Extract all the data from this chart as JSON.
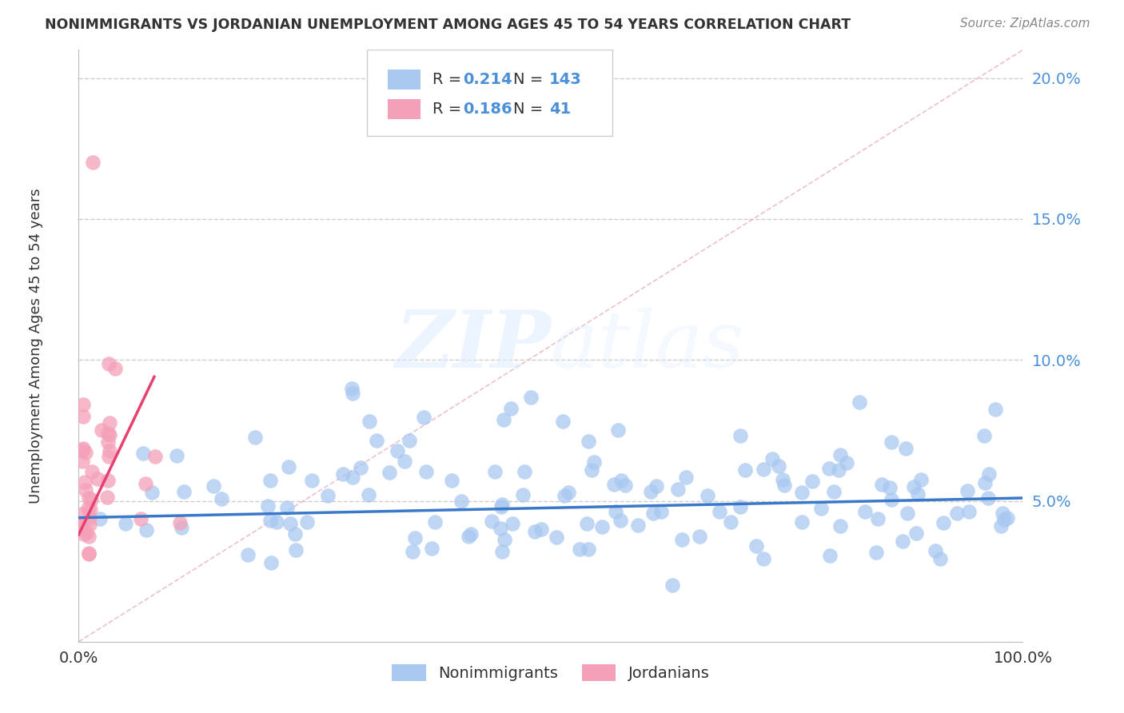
{
  "title": "NONIMMIGRANTS VS JORDANIAN UNEMPLOYMENT AMONG AGES 45 TO 54 YEARS CORRELATION CHART",
  "source": "Source: ZipAtlas.com",
  "ylabel": "Unemployment Among Ages 45 to 54 years",
  "xlim": [
    0,
    1
  ],
  "ylim": [
    0,
    0.21
  ],
  "ytick_vals": [
    0.0,
    0.05,
    0.1,
    0.15,
    0.2
  ],
  "ytick_labels": [
    "",
    "5.0%",
    "10.0%",
    "15.0%",
    "20.0%"
  ],
  "grid_color": "#cccccc",
  "background_color": "#ffffff",
  "watermark_zip": "ZIP",
  "watermark_atlas": "atlas",
  "nonimmigrant_color": "#a8c8f0",
  "jordanian_color": "#f4a0b8",
  "nonimmigrant_trend_color": "#3a78c9",
  "jordanian_trend_color": "#e84070",
  "diagonal_color": "#e8b0c0",
  "legend_R_nonimmigrant": "0.214",
  "legend_N_nonimmigrant": "143",
  "legend_R_jordanian": "0.186",
  "legend_N_jordanian": "41",
  "value_color": "#4a90d9",
  "label_color": "#333333",
  "title_color": "#333333",
  "source_color": "#888888"
}
